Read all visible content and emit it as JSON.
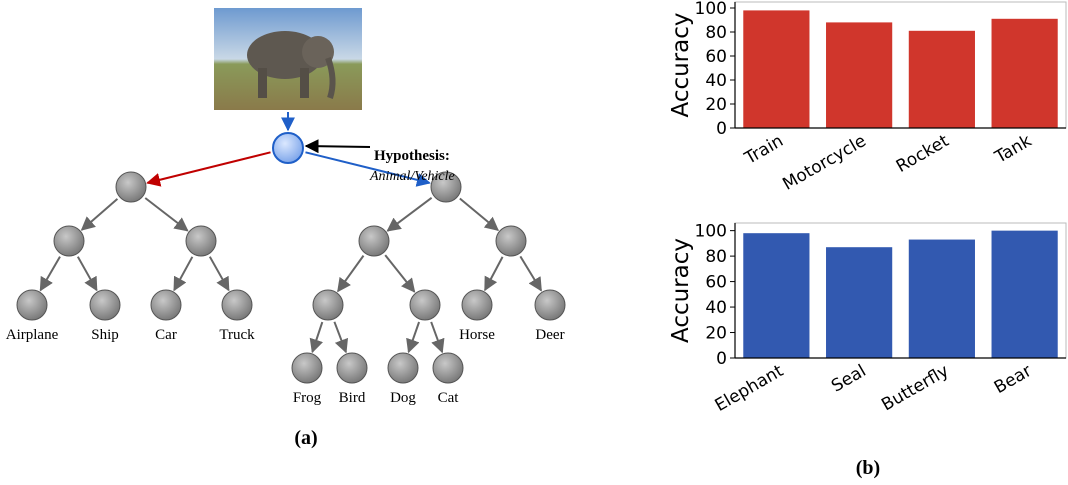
{
  "diagram": {
    "hypothesis": {
      "title": "Hypothesis:",
      "text": "Animal/Vehicle"
    },
    "leaves": [
      "Airplane",
      "Ship",
      "Car",
      "Truck",
      "Horse",
      "Deer",
      "Frog",
      "Bird",
      "Dog",
      "Cat"
    ]
  },
  "captions": [
    "(a)",
    "(b)"
  ],
  "chart_data": [
    {
      "type": "bar",
      "ylabel": "Accuracy",
      "categories": [
        "Train",
        "Motorcycle",
        "Rocket",
        "Tank"
      ],
      "values": [
        98,
        88,
        81,
        91
      ],
      "color": "#d0362c",
      "ylim": [
        0,
        105
      ],
      "yticks": [
        0,
        20,
        40,
        60,
        80,
        100
      ]
    },
    {
      "type": "bar",
      "ylabel": "Accuracy",
      "categories": [
        "Elephant",
        "Seal",
        "Butterfly",
        "Bear"
      ],
      "values": [
        98,
        87,
        93,
        100
      ],
      "color": "#3259b0",
      "ylim": [
        0,
        106
      ],
      "yticks": [
        0,
        20,
        40,
        60,
        80,
        100
      ]
    }
  ]
}
